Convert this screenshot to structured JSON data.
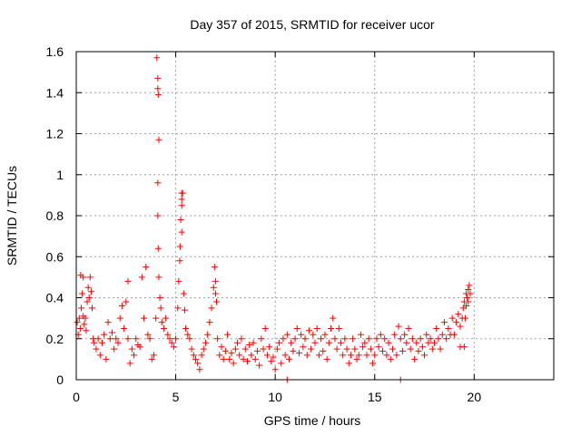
{
  "chart_data": {
    "type": "scatter",
    "title": "Day 357 of 2015, SRMTID for receiver ucor",
    "xlabel": "GPS time / hours",
    "ylabel": "SRMTID / TECUs",
    "xlim": [
      0,
      24
    ],
    "ylim": [
      0,
      1.6
    ],
    "xticks": [
      "0",
      "5",
      "10",
      "15",
      "20"
    ],
    "xtick_values": [
      0,
      5,
      10,
      15,
      20
    ],
    "yticks": [
      "0",
      "0.2",
      "0.4",
      "0.6",
      "0.8",
      "1",
      "1.2",
      "1.4",
      "1.6"
    ],
    "ytick_values": [
      0,
      0.2,
      0.4,
      0.6,
      0.8,
      1.0,
      1.2,
      1.4,
      1.6
    ],
    "grid": true,
    "marker": "+",
    "marker_color": "#ff0000",
    "series": [
      {
        "name": "SRMTID",
        "points": [
          [
            0.05,
            0.28
          ],
          [
            0.1,
            0.22
          ],
          [
            0.15,
            0.3
          ],
          [
            0.2,
            0.25
          ],
          [
            0.25,
            0.35
          ],
          [
            0.3,
            0.42
          ],
          [
            0.35,
            0.31
          ],
          [
            0.4,
            0.27
          ],
          [
            0.45,
            0.3
          ],
          [
            0.5,
            0.24
          ],
          [
            0.22,
            0.51
          ],
          [
            0.35,
            0.5
          ],
          [
            0.55,
            0.38
          ],
          [
            0.6,
            0.45
          ],
          [
            0.65,
            0.4
          ],
          [
            0.7,
            0.5
          ],
          [
            0.75,
            0.43
          ],
          [
            0.8,
            0.35
          ],
          [
            0.85,
            0.2
          ],
          [
            0.9,
            0.18
          ],
          [
            1.0,
            0.15
          ],
          [
            1.1,
            0.2
          ],
          [
            1.2,
            0.12
          ],
          [
            1.3,
            0.18
          ],
          [
            1.4,
            0.22
          ],
          [
            1.5,
            0.1
          ],
          [
            1.6,
            0.28
          ],
          [
            1.7,
            0.2
          ],
          [
            1.8,
            0.23
          ],
          [
            1.9,
            0.15
          ],
          [
            2.0,
            0.2
          ],
          [
            2.1,
            0.18
          ],
          [
            2.2,
            0.3
          ],
          [
            2.3,
            0.36
          ],
          [
            2.4,
            0.25
          ],
          [
            2.5,
            0.38
          ],
          [
            2.6,
            0.2
          ],
          [
            2.7,
            0.08
          ],
          [
            2.8,
            0.15
          ],
          [
            2.9,
            0.12
          ],
          [
            2.6,
            0.48
          ],
          [
            3.0,
            0.2
          ],
          [
            3.1,
            0.17
          ],
          [
            3.2,
            0.16
          ],
          [
            3.3,
            0.5
          ],
          [
            3.4,
            0.3
          ],
          [
            3.5,
            0.55
          ],
          [
            3.6,
            0.22
          ],
          [
            3.7,
            0.2
          ],
          [
            3.8,
            0.1
          ],
          [
            3.9,
            0.12
          ],
          [
            4.0,
            0.3
          ],
          [
            4.05,
            1.57
          ],
          [
            4.1,
            1.47
          ],
          [
            4.1,
            1.42
          ],
          [
            4.12,
            1.39
          ],
          [
            4.15,
            1.17
          ],
          [
            4.1,
            0.96
          ],
          [
            4.1,
            0.8
          ],
          [
            4.12,
            0.64
          ],
          [
            4.15,
            0.5
          ],
          [
            4.2,
            0.4
          ],
          [
            4.25,
            0.35
          ],
          [
            4.3,
            0.28
          ],
          [
            4.4,
            0.25
          ],
          [
            4.5,
            0.3
          ],
          [
            4.6,
            0.22
          ],
          [
            4.7,
            0.2
          ],
          [
            4.8,
            0.18
          ],
          [
            4.9,
            0.16
          ],
          [
            5.0,
            0.2
          ],
          [
            5.1,
            0.35
          ],
          [
            5.15,
            0.48
          ],
          [
            5.2,
            0.58
          ],
          [
            5.22,
            0.65
          ],
          [
            5.25,
            0.78
          ],
          [
            5.3,
            0.85
          ],
          [
            5.3,
            0.88
          ],
          [
            5.3,
            0.91
          ],
          [
            5.35,
            0.91
          ],
          [
            5.3,
            0.72
          ],
          [
            5.4,
            0.42
          ],
          [
            5.45,
            0.34
          ],
          [
            5.5,
            0.25
          ],
          [
            5.6,
            0.22
          ],
          [
            5.7,
            0.2
          ],
          [
            5.8,
            0.15
          ],
          [
            5.9,
            0.12
          ],
          [
            6.0,
            0.1
          ],
          [
            6.1,
            0.08
          ],
          [
            6.2,
            0.05
          ],
          [
            6.3,
            0.12
          ],
          [
            6.4,
            0.15
          ],
          [
            6.5,
            0.18
          ],
          [
            6.6,
            0.22
          ],
          [
            6.7,
            0.28
          ],
          [
            6.8,
            0.35
          ],
          [
            6.9,
            0.45
          ],
          [
            6.95,
            0.55
          ],
          [
            7.0,
            0.48
          ],
          [
            7.0,
            0.42
          ],
          [
            7.05,
            0.38
          ],
          [
            7.1,
            0.2
          ],
          [
            7.2,
            0.12
          ],
          [
            7.3,
            0.16
          ],
          [
            7.4,
            0.1
          ],
          [
            7.5,
            0.14
          ],
          [
            7.6,
            0.22
          ],
          [
            7.7,
            0.1
          ],
          [
            7.8,
            0.13
          ],
          [
            7.9,
            0.08
          ],
          [
            8.0,
            0.15
          ],
          [
            8.1,
            0.18
          ],
          [
            8.2,
            0.12
          ],
          [
            8.3,
            0.2
          ],
          [
            8.4,
            0.1
          ],
          [
            8.5,
            0.15
          ],
          [
            8.6,
            0.09
          ],
          [
            8.7,
            0.17
          ],
          [
            8.8,
            0.12
          ],
          [
            8.9,
            0.18
          ],
          [
            9.0,
            0.1
          ],
          [
            9.1,
            0.14
          ],
          [
            9.2,
            0.07
          ],
          [
            9.3,
            0.2
          ],
          [
            9.4,
            0.15
          ],
          [
            9.5,
            0.25
          ],
          [
            9.6,
            0.12
          ],
          [
            9.7,
            0.16
          ],
          [
            9.8,
            0.09
          ],
          [
            9.9,
            0.11
          ],
          [
            10.0,
            0.05
          ],
          [
            10.1,
            0.15
          ],
          [
            10.2,
            0.18
          ],
          [
            10.3,
            0.08
          ],
          [
            10.4,
            0.2
          ],
          [
            10.5,
            0.12
          ],
          [
            10.6,
            0.22
          ],
          [
            10.7,
            0.1
          ],
          [
            10.8,
            0.18
          ],
          [
            10.9,
            0.14
          ],
          [
            11.0,
            0.2
          ],
          [
            11.1,
            0.25
          ],
          [
            11.2,
            0.13
          ],
          [
            11.3,
            0.22
          ],
          [
            11.4,
            0.16
          ],
          [
            11.5,
            0.2
          ],
          [
            11.6,
            0.12
          ],
          [
            11.7,
            0.24
          ],
          [
            11.8,
            0.15
          ],
          [
            11.9,
            0.22
          ],
          [
            12.0,
            0.18
          ],
          [
            12.1,
            0.25
          ],
          [
            12.2,
            0.12
          ],
          [
            12.3,
            0.2
          ],
          [
            12.4,
            0.14
          ],
          [
            12.5,
            0.22
          ],
          [
            12.6,
            0.1
          ],
          [
            12.7,
            0.18
          ],
          [
            12.8,
            0.25
          ],
          [
            12.9,
            0.3
          ],
          [
            13.0,
            0.2
          ],
          [
            13.1,
            0.15
          ],
          [
            13.2,
            0.25
          ],
          [
            13.3,
            0.18
          ],
          [
            13.4,
            0.12
          ],
          [
            13.5,
            0.2
          ],
          [
            13.6,
            0.15
          ],
          [
            13.7,
            0.08
          ],
          [
            13.8,
            0.12
          ],
          [
            13.9,
            0.2
          ],
          [
            14.0,
            0.15
          ],
          [
            14.1,
            0.1
          ],
          [
            14.2,
            0.12
          ],
          [
            14.3,
            0.22
          ],
          [
            14.4,
            0.16
          ],
          [
            14.5,
            0.18
          ],
          [
            14.6,
            0.12
          ],
          [
            14.7,
            0.2
          ],
          [
            14.8,
            0.15
          ],
          [
            14.9,
            0.08
          ],
          [
            15.0,
            0.12
          ],
          [
            15.1,
            0.2
          ],
          [
            15.2,
            0.16
          ],
          [
            15.3,
            0.22
          ],
          [
            15.4,
            0.14
          ],
          [
            15.5,
            0.2
          ],
          [
            15.6,
            0.12
          ],
          [
            15.7,
            0.18
          ],
          [
            15.8,
            0.1
          ],
          [
            15.9,
            0.15
          ],
          [
            16.0,
            0.22
          ],
          [
            16.1,
            0.12
          ],
          [
            16.2,
            0.26
          ],
          [
            16.3,
            0.2
          ],
          [
            16.4,
            0.14
          ],
          [
            16.5,
            0.22
          ],
          [
            16.6,
            0.18
          ],
          [
            16.7,
            0.25
          ],
          [
            16.8,
            0.15
          ],
          [
            16.9,
            0.2
          ],
          [
            17.0,
            0.1
          ],
          [
            17.1,
            0.18
          ],
          [
            17.2,
            0.14
          ],
          [
            17.3,
            0.2
          ],
          [
            17.4,
            0.16
          ],
          [
            17.5,
            0.12
          ],
          [
            17.6,
            0.22
          ],
          [
            17.7,
            0.18
          ],
          [
            17.8,
            0.2
          ],
          [
            17.9,
            0.15
          ],
          [
            18.0,
            0.18
          ],
          [
            18.1,
            0.25
          ],
          [
            18.2,
            0.2
          ],
          [
            18.3,
            0.15
          ],
          [
            18.4,
            0.22
          ],
          [
            18.5,
            0.28
          ],
          [
            18.6,
            0.2
          ],
          [
            18.7,
            0.25
          ],
          [
            18.8,
            0.22
          ],
          [
            18.9,
            0.3
          ],
          [
            19.0,
            0.22
          ],
          [
            19.1,
            0.28
          ],
          [
            19.2,
            0.32
          ],
          [
            19.3,
            0.26
          ],
          [
            19.4,
            0.3
          ],
          [
            19.45,
            0.35
          ],
          [
            19.5,
            0.38
          ],
          [
            19.55,
            0.3
          ],
          [
            19.6,
            0.36
          ],
          [
            19.6,
            0.42
          ],
          [
            19.65,
            0.4
          ],
          [
            19.7,
            0.38
          ],
          [
            19.7,
            0.44
          ],
          [
            19.75,
            0.46
          ],
          [
            19.8,
            0.42
          ],
          [
            19.3,
            0.16
          ],
          [
            19.5,
            0.16
          ],
          [
            10.6,
            0.0
          ],
          [
            16.3,
            0.0
          ]
        ]
      }
    ]
  }
}
